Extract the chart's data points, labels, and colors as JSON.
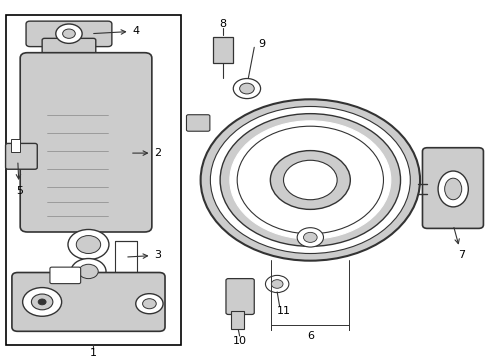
{
  "background_color": "#ffffff",
  "border_color": "#000000",
  "line_color": "#333333",
  "part_color": "#cccccc",
  "part_stroke": "#333333",
  "figsize": [
    4.89,
    3.6
  ],
  "dpi": 100
}
